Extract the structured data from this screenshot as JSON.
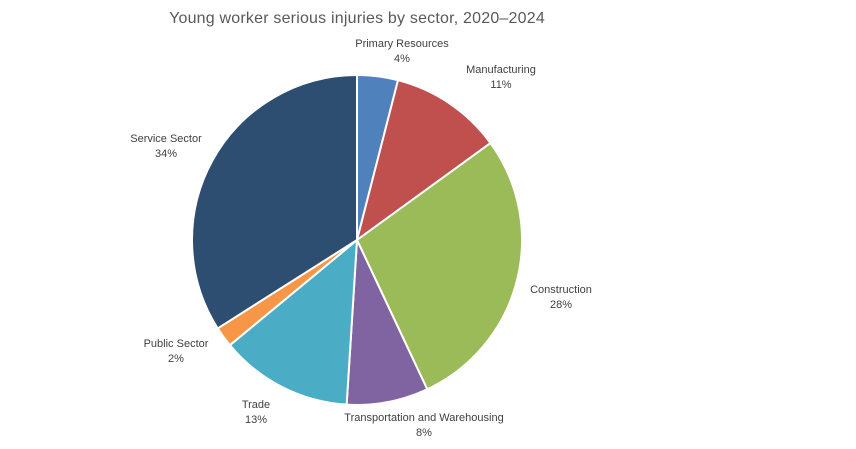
{
  "title": "Young worker serious injuries by sector, 2020–2024",
  "chart_data": {
    "type": "pie",
    "title": "Young worker serious injuries by sector, 2020–2024",
    "start_angle_deg": 0,
    "direction": "clockwise",
    "legend_position": "none",
    "label_style": "category name and percent, outside slices",
    "separator_color": "#ffffff",
    "background_color": "#ffffff",
    "title_color": "#595959",
    "label_color": "#3f3f3f",
    "slices": [
      {
        "label": "Primary Resources",
        "value": 4,
        "pct_label": "4%",
        "color": "#4f81bd"
      },
      {
        "label": "Manufacturing",
        "value": 11,
        "pct_label": "11%",
        "color": "#c0504d"
      },
      {
        "label": "Construction",
        "value": 28,
        "pct_label": "28%",
        "color": "#9bbb59"
      },
      {
        "label": "Transportation and Warehousing",
        "value": 8,
        "pct_label": "8%",
        "color": "#8064a2"
      },
      {
        "label": "Trade",
        "value": 13,
        "pct_label": "13%",
        "color": "#4bacc6"
      },
      {
        "label": "Public Sector",
        "value": 2,
        "pct_label": "2%",
        "color": "#f79646"
      },
      {
        "label": "Service Sector",
        "value": 34,
        "pct_label": "34%",
        "color": "#2d4d71"
      }
    ]
  }
}
